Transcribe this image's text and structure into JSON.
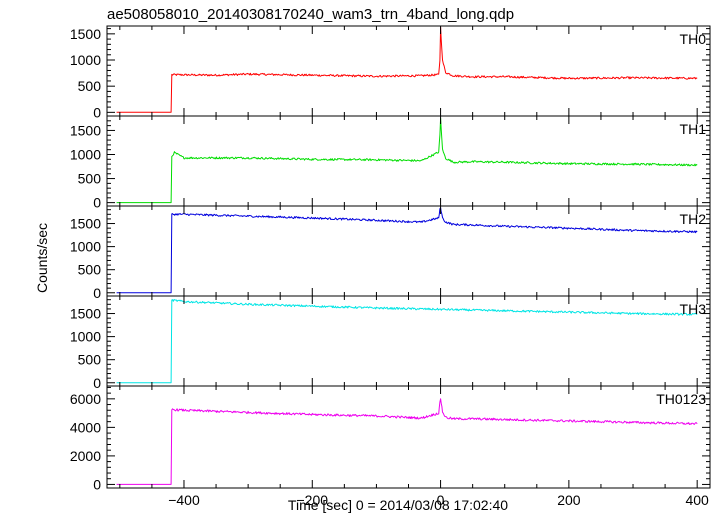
{
  "chart_data": {
    "type": "line",
    "title": "ae508058010_20140308170240_wam3_trn_4band_long.qdp",
    "xlabel": "Time [sec] 0 = 2014/03/08 17:02:40",
    "ylabel": "Counts/sec",
    "xlim": [
      -520,
      420
    ],
    "x_ticks": [
      -400,
      -200,
      0,
      200,
      400
    ],
    "x_tick_labels": [
      "−400",
      "−200",
      "0",
      "200",
      "400"
    ],
    "grid": false,
    "panels": [
      {
        "name": "TH0",
        "color": "#ff0000",
        "ylim": [
          -70,
          1650
        ],
        "y_ticks": [
          0,
          500,
          1000,
          1500
        ],
        "series": {
          "x": [
            -505,
            -420,
            -419,
            -350,
            -300,
            -200,
            -100,
            -30,
            -3,
            -1,
            0,
            3,
            8,
            20,
            50,
            100,
            200,
            300,
            400
          ],
          "y": [
            0,
            0,
            720,
            710,
            730,
            710,
            690,
            700,
            720,
            1000,
            1620,
            990,
            760,
            700,
            680,
            680,
            650,
            660,
            650
          ]
        }
      },
      {
        "name": "TH1",
        "color": "#00dd00",
        "ylim": [
          -70,
          1800
        ],
        "y_ticks": [
          0,
          500,
          1000,
          1500
        ],
        "series": {
          "x": [
            -505,
            -420,
            -419,
            -415,
            -400,
            -300,
            -200,
            -100,
            -30,
            -3,
            -1,
            0,
            3,
            8,
            20,
            50,
            100,
            200,
            300,
            400
          ],
          "y": [
            0,
            0,
            960,
            1040,
            930,
            930,
            900,
            890,
            870,
            1050,
            1400,
            1750,
            1100,
            920,
            840,
            850,
            840,
            810,
            800,
            780
          ]
        }
      },
      {
        "name": "TH2",
        "color": "#0000dd",
        "ylim": [
          -70,
          1880
        ],
        "y_ticks": [
          0,
          500,
          1000,
          1500
        ],
        "series": {
          "x": [
            -505,
            -420,
            -419,
            -400,
            -300,
            -200,
            -100,
            -30,
            -3,
            -1,
            0,
            3,
            8,
            20,
            50,
            100,
            200,
            300,
            400
          ],
          "y": [
            0,
            0,
            1700,
            1700,
            1660,
            1620,
            1570,
            1530,
            1620,
            1800,
            1850,
            1620,
            1530,
            1480,
            1470,
            1440,
            1400,
            1350,
            1320
          ]
        }
      },
      {
        "name": "TH3",
        "color": "#00e5e5",
        "ylim": [
          -70,
          1880
        ],
        "y_ticks": [
          0,
          500,
          1000,
          1500
        ],
        "series": {
          "x": [
            -505,
            -420,
            -419,
            -400,
            -300,
            -200,
            -100,
            0,
            100,
            200,
            300,
            400
          ],
          "y": [
            0,
            0,
            1790,
            1760,
            1700,
            1660,
            1620,
            1590,
            1560,
            1530,
            1500,
            1480
          ]
        }
      },
      {
        "name": "TH0123",
        "color": "#ee00ee",
        "ylim": [
          -250,
          6900
        ],
        "y_ticks": [
          0,
          2000,
          4000,
          6000
        ],
        "series": {
          "x": [
            -505,
            -420,
            -419,
            -400,
            -300,
            -200,
            -100,
            -30,
            -3,
            -1,
            0,
            3,
            8,
            20,
            50,
            100,
            200,
            300,
            400
          ],
          "y": [
            0,
            0,
            5250,
            5200,
            5050,
            4900,
            4800,
            4650,
            5000,
            5700,
            6050,
            5100,
            4700,
            4600,
            4600,
            4550,
            4450,
            4350,
            4250
          ]
        }
      }
    ]
  }
}
